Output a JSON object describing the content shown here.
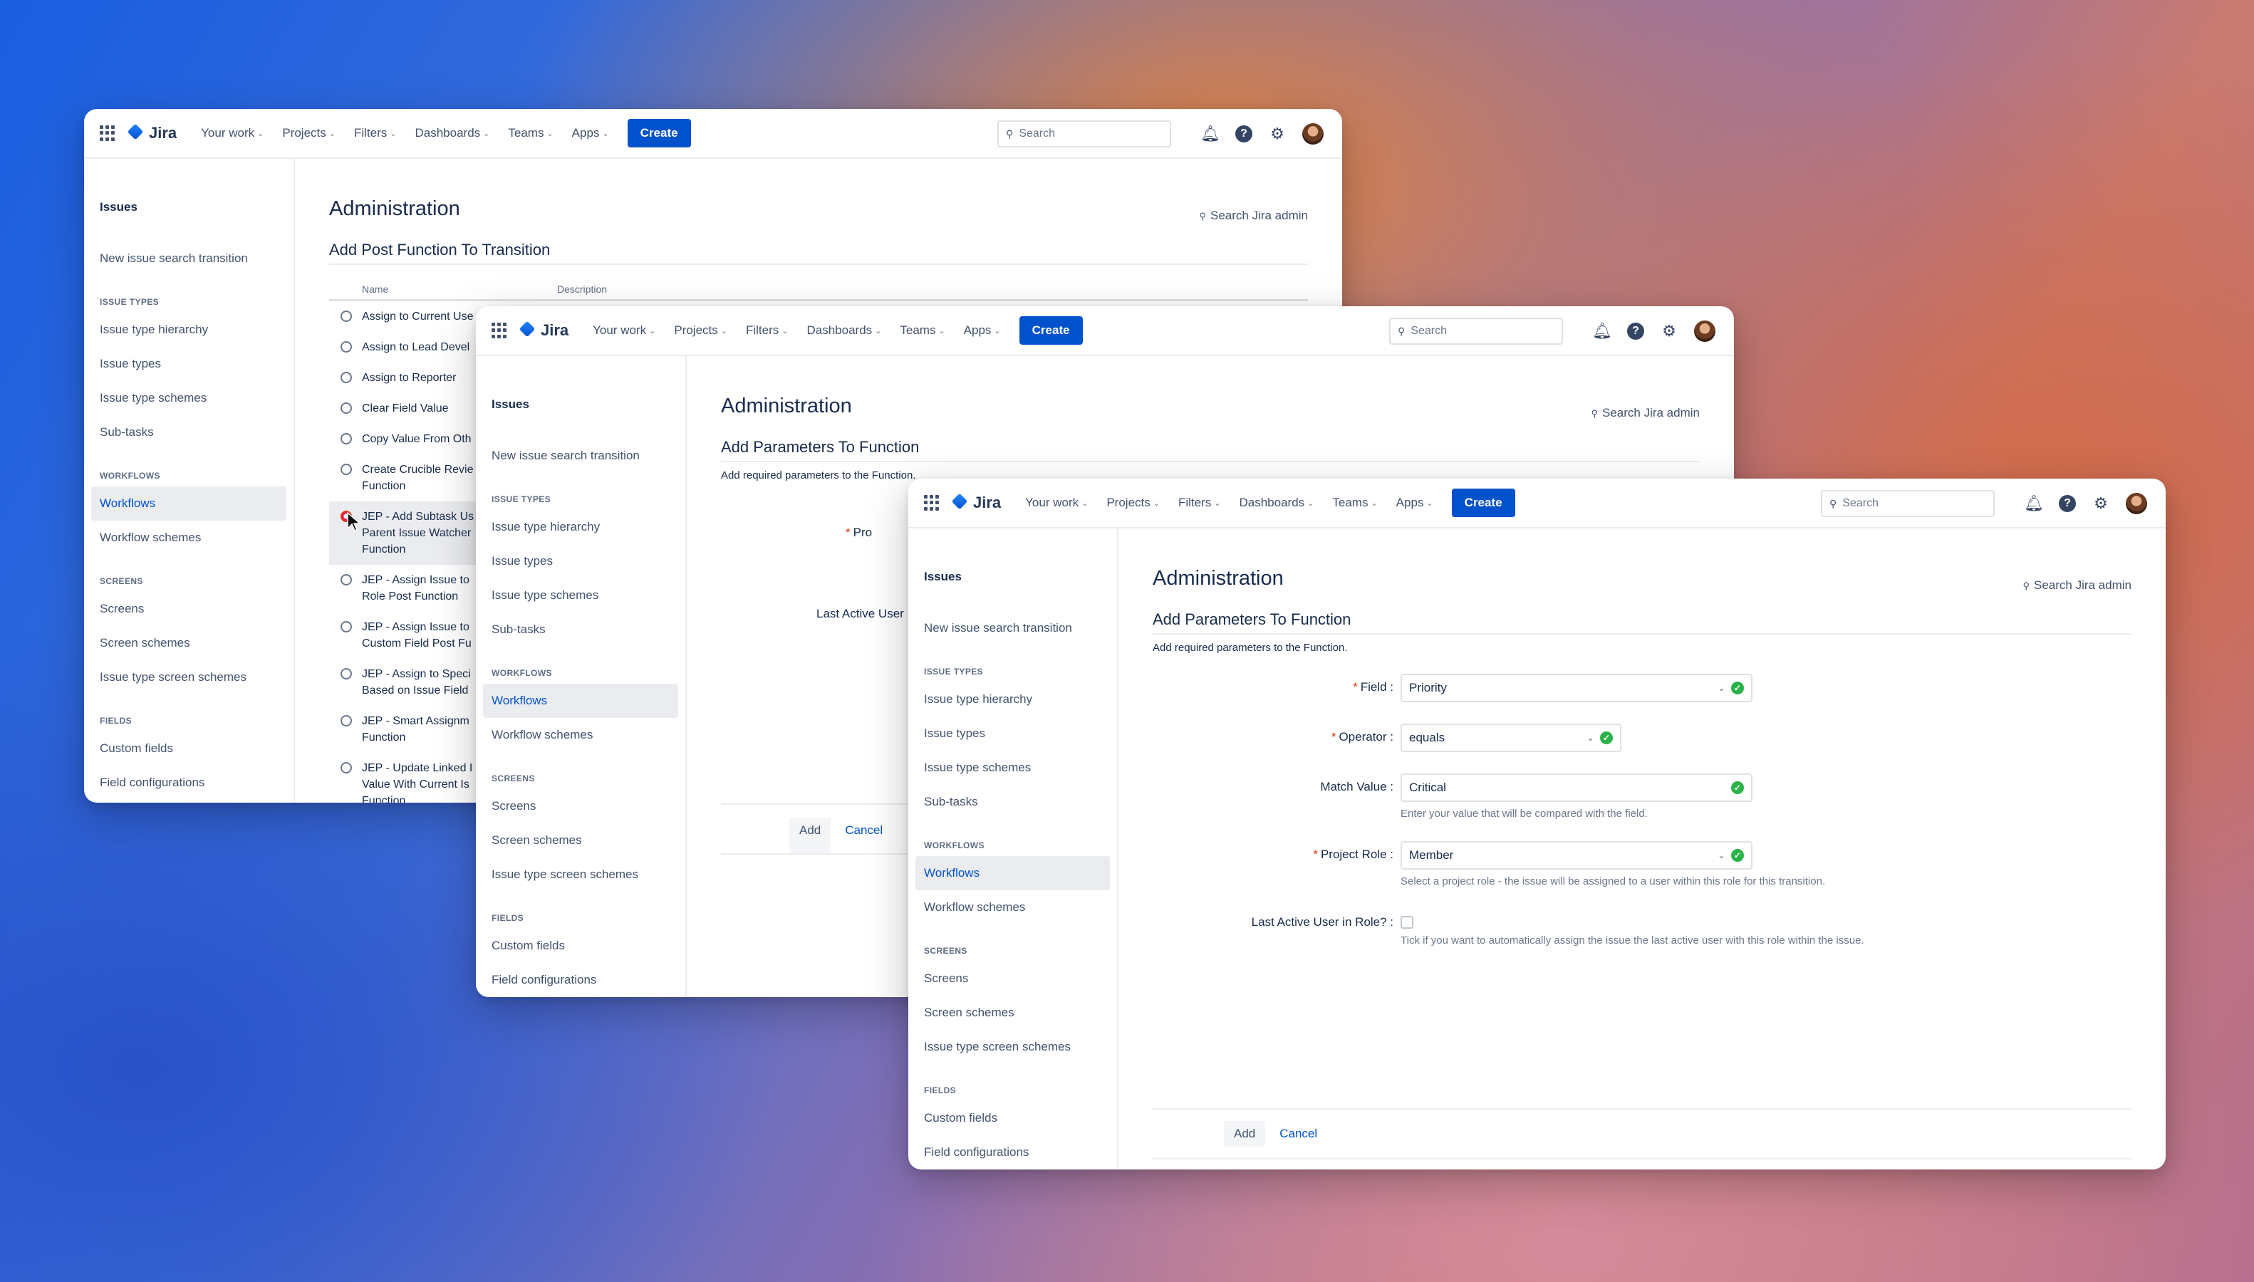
{
  "nav": {
    "app_name": "Jira",
    "items": [
      "Your work",
      "Projects",
      "Filters",
      "Dashboards",
      "Teams",
      "Apps"
    ],
    "create_label": "Create",
    "search_placeholder": "Search"
  },
  "sidebar": {
    "title": "Issues",
    "new_issue_search": "New issue search transition",
    "issue_types_head": "ISSUE TYPES",
    "issue_types": [
      "Issue type hierarchy",
      "Issue types",
      "Issue type schemes",
      "Sub-tasks"
    ],
    "workflows_head": "WORKFLOWS",
    "workflows": [
      "Workflows",
      "Workflow schemes"
    ],
    "screens_head": "SCREENS",
    "screens": [
      "Screens",
      "Screen schemes",
      "Issue type screen schemes"
    ],
    "fields_head": "FIELDS",
    "fields": [
      "Custom fields",
      "Field configurations"
    ]
  },
  "admin": {
    "title": "Administration",
    "search_admin": "Search Jira admin"
  },
  "window1": {
    "subtitle": "Add Post Function To Transition",
    "col_name": "Name",
    "col_desc": "Description",
    "options": [
      "Assign to Current Use",
      "Assign to Lead Devel",
      "Assign to Reporter",
      "Clear Field Value",
      "Copy Value From Oth",
      "Create Crucible Revie Function",
      "JEP - Add Subtask Us Parent Issue Watcher Function",
      "JEP - Assign Issue to Role Post Function",
      "JEP - Assign Issue to Custom Field Post Fu",
      "JEP - Assign to Speci Based on Issue Field",
      "JEP - Smart Assignm Function",
      "JEP - Update Linked I Value With Current Is Function"
    ]
  },
  "window2": {
    "subtitle": "Add Parameters To Function",
    "description": "Add required parameters to the Function.",
    "field_label_partial": "Pro",
    "last_active_partial": "Last Active User",
    "add_label": "Add",
    "cancel_label": "Cancel"
  },
  "window3": {
    "subtitle": "Add Parameters To Function",
    "description": "Add required parameters to the Function.",
    "field": {
      "label": "Field :",
      "value": "Priority"
    },
    "operator": {
      "label": "Operator :",
      "value": "equals"
    },
    "match_value": {
      "label": "Match Value :",
      "value": "Critical",
      "hint": "Enter your value that will be compared with the field."
    },
    "project_role": {
      "label": "Project Role :",
      "value": "Member",
      "hint": "Select a project role - the issue will be assigned to a user within this role for this transition."
    },
    "last_active": {
      "label": "Last Active User in Role? :",
      "hint": "Tick if you want to automatically assign the issue the last active user with this role within the issue."
    },
    "add_label": "Add",
    "cancel_label": "Cancel"
  }
}
